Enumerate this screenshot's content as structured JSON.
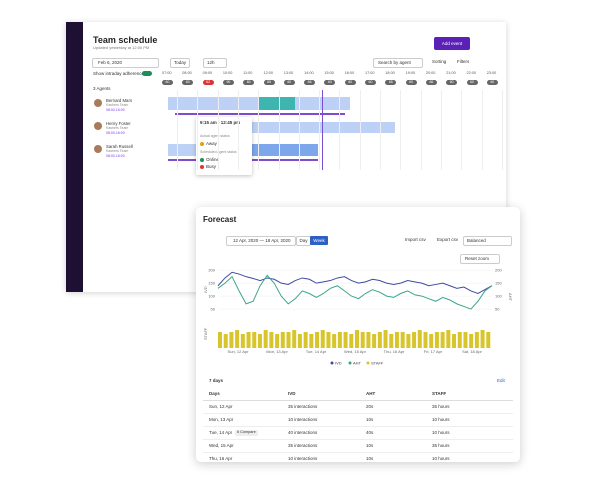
{
  "schedule": {
    "title": "Team schedule",
    "subtitle": "Updated yesterday at 12:00 PM",
    "add_button": "Add event",
    "date": "Feb 6, 2020",
    "today": "Today",
    "range": "12h",
    "search": "Search by agent",
    "sorting": "Sorting",
    "filters": "Filters",
    "adherence": "Show intraday adherence",
    "agents_count": "3 Agents",
    "hours": [
      "07:00",
      "08:00",
      "09:00",
      "10:00",
      "11:00",
      "12:00",
      "13:00",
      "14:00",
      "15:00",
      "16:00",
      "17:00",
      "18:00",
      "19:00",
      "20:00",
      "21:00",
      "22:00",
      "23:00"
    ],
    "counts": [
      60,
      60,
      62,
      90,
      60,
      65,
      60,
      66,
      60,
      60,
      60,
      65,
      60,
      66,
      60,
      60,
      60
    ],
    "agents": [
      {
        "name": "Bernard Mars",
        "team": "Kashers Team",
        "hours": "08:00-16:00"
      },
      {
        "name": "Henry Foster",
        "team": "Kashers Team",
        "hours": "08:00-16:00"
      },
      {
        "name": "Sarah Russell",
        "team": "Kashers Team",
        "hours": "08:00-16:00"
      }
    ],
    "popup": {
      "time": "9:15 am - 12:45 pm",
      "actual": "Actual agent status",
      "away": "Away",
      "scheduled": "Scheduled agent status",
      "online": "Online",
      "busy": "Busy"
    }
  },
  "forecast": {
    "title": "Forecast",
    "dates": "12 Apr, 2020 — 18 Apr, 2020",
    "day": "Day",
    "week": "Week",
    "import": "Import csv",
    "export": "Export csv",
    "mode": "Balanced",
    "reset": "Reset zoom",
    "chart": {
      "type": "line",
      "ylabel": "IVD",
      "y2label": "AHT",
      "staff_label": "STAFF",
      "ylim": [
        0,
        220
      ],
      "yticks": [
        50,
        100,
        150,
        200
      ],
      "y2lim": [
        0,
        220
      ],
      "y2ticks": [
        50,
        100,
        150,
        200
      ],
      "categories": [
        "Sun, 12 Apr",
        "Mon, 13 Apr",
        "Tue, 14 Apr",
        "Wed, 15 Apr",
        "Thu, 16 Apr",
        "Fri, 17 Apr",
        "Sat, 18 Apr"
      ],
      "series": [
        {
          "name": "IVD",
          "color": "#3f4a9e",
          "values": [
            140,
            170,
            192,
            185,
            175,
            168,
            160,
            170,
            165,
            150,
            145,
            160,
            170,
            165,
            150,
            155,
            160,
            170,
            175,
            160,
            150,
            155,
            165,
            160,
            150,
            145,
            150,
            160,
            155,
            150,
            140,
            145,
            150,
            140,
            130,
            135,
            120,
            110,
            125,
            140
          ]
        },
        {
          "name": "AHT",
          "color": "#3aa58c",
          "axis": "y2",
          "values": [
            130,
            150,
            175,
            120,
            70,
            80,
            140,
            180,
            150,
            100,
            70,
            90,
            120,
            110,
            95,
            110,
            130,
            140,
            120,
            100,
            90,
            110,
            125,
            115,
            100,
            95,
            110,
            120,
            105,
            100,
            90,
            80,
            95,
            85,
            70,
            60,
            50,
            80,
            120,
            140
          ]
        }
      ],
      "staff": {
        "name": "STAFF",
        "color": "#d8c52c",
        "ylim": [
          0,
          10
        ],
        "values": [
          8,
          7,
          8,
          9,
          7,
          8,
          8,
          7,
          9,
          8,
          7,
          8,
          8,
          9,
          7,
          8,
          7,
          8,
          9,
          8,
          7,
          8,
          8,
          7,
          9,
          8,
          8,
          7,
          8,
          9,
          7,
          8,
          8,
          7,
          8,
          9,
          8,
          7,
          8,
          8,
          9,
          7,
          8,
          8,
          7,
          8,
          9,
          8
        ]
      }
    },
    "table": {
      "title": "7 days",
      "edit": "Edit",
      "headers": [
        "Days",
        "IVD",
        "AHT",
        "STAFF"
      ],
      "badge": "6 Compare",
      "rows": [
        [
          "Sun, 12 Apr",
          "35 interactions",
          "20s",
          "35 hours"
        ],
        [
          "Mon, 13 Apr",
          "10 interactions",
          "10s",
          "10 hours"
        ],
        [
          "Tue, 14 Apr",
          "40 interactions",
          "40s",
          "10 hours"
        ],
        [
          "Wed, 15 Apr",
          "35 interactions",
          "10s",
          "35 hours"
        ],
        [
          "Thu, 16 Apr",
          "10 interactions",
          "10s",
          "10 hours"
        ]
      ]
    }
  }
}
